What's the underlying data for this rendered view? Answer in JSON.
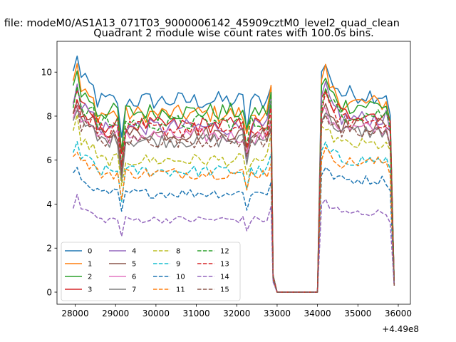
{
  "figure": {
    "suptitle": "n file: modeM0/AS1A13_071T03_9000006142_45909cztM0_level2_quad_clean"
  },
  "chart_data": {
    "type": "line",
    "title": "Quadrant 2 module wise count rates with 100.0s bins.",
    "xlabel": "",
    "ylabel": "",
    "x_offset_label": "+4.49e8",
    "xlim": [
      27550,
      36300
    ],
    "ylim": [
      -0.55,
      11.4
    ],
    "xticks": [
      28000,
      29000,
      30000,
      31000,
      32000,
      33000,
      34000,
      35000,
      36000
    ],
    "yticks": [
      0,
      2,
      4,
      6,
      8,
      10
    ],
    "grid": false,
    "legend": {
      "placement": "lower-left",
      "ncol": 4
    },
    "x_sampling": {
      "segment_1": [
        27950,
        32850,
        100
      ],
      "gap_points": [
        32900,
        33000,
        34000
      ],
      "segment_2": [
        34100,
        35900,
        100
      ],
      "note": "x values are offsets relative to 4.49e8 as printed on the axis"
    },
    "series": [
      {
        "name": "0",
        "color": "#1f77b4",
        "linestyle": "solid",
        "level_segment_1": 8.7,
        "level_segment_2": 9.0,
        "peak": 10.9,
        "low_end": 0.35
      },
      {
        "name": "1",
        "color": "#ff7f0e",
        "linestyle": "solid",
        "level_segment_1": 8.1,
        "level_segment_2": 8.6,
        "peak": 10.4,
        "low_end": 0.35
      },
      {
        "name": "2",
        "color": "#2ca02c",
        "linestyle": "solid",
        "level_segment_1": 8.2,
        "level_segment_2": 8.5,
        "peak": 10.1,
        "low_end": 0.35
      },
      {
        "name": "3",
        "color": "#d62728",
        "linestyle": "solid",
        "level_segment_1": 7.6,
        "level_segment_2": 8.1,
        "peak": 9.3,
        "low_end": 0.35
      },
      {
        "name": "4",
        "color": "#9467bd",
        "linestyle": "solid",
        "level_segment_1": 7.5,
        "level_segment_2": 7.9,
        "peak": 9.8,
        "low_end": 0.35
      },
      {
        "name": "5",
        "color": "#8c564b",
        "linestyle": "solid",
        "level_segment_1": 7.2,
        "level_segment_2": 7.6,
        "peak": 9.0,
        "low_end": 0.35
      },
      {
        "name": "6",
        "color": "#e377c2",
        "linestyle": "solid",
        "level_segment_1": 7.1,
        "level_segment_2": 7.4,
        "peak": 8.8,
        "low_end": 0.35
      },
      {
        "name": "7",
        "color": "#7f7f7f",
        "linestyle": "solid",
        "level_segment_1": 6.9,
        "level_segment_2": 7.3,
        "peak": 8.6,
        "low_end": 0.35
      },
      {
        "name": "8",
        "color": "#bcbd22",
        "linestyle": "dashed",
        "level_segment_1": 6.0,
        "level_segment_2": 6.7,
        "peak": 8.0,
        "low_end": 0.3
      },
      {
        "name": "9",
        "color": "#17becf",
        "linestyle": "dashed",
        "level_segment_1": 5.5,
        "level_segment_2": 6.0,
        "peak": 6.9,
        "low_end": 0.3
      },
      {
        "name": "10",
        "color": "#1f77b4",
        "linestyle": "dashed",
        "level_segment_1": 4.5,
        "level_segment_2": 5.1,
        "peak": 5.8,
        "low_end": 0.3
      },
      {
        "name": "11",
        "color": "#ff7f0e",
        "linestyle": "dashed",
        "level_segment_1": 5.4,
        "level_segment_2": 5.9,
        "peak": 6.6,
        "low_end": 0.3
      },
      {
        "name": "12",
        "color": "#2ca02c",
        "linestyle": "dashed",
        "level_segment_1": 7.7,
        "level_segment_2": 8.1,
        "peak": 9.4,
        "low_end": 0.3
      },
      {
        "name": "13",
        "color": "#d62728",
        "linestyle": "dashed",
        "level_segment_1": 7.4,
        "level_segment_2": 7.8,
        "peak": 9.1,
        "low_end": 0.3
      },
      {
        "name": "14",
        "color": "#9467bd",
        "linestyle": "dashed",
        "level_segment_1": 3.3,
        "level_segment_2": 3.6,
        "peak": 4.4,
        "low_end": 0.3
      },
      {
        "name": "15",
        "color": "#8c564b",
        "linestyle": "dashed",
        "level_segment_1": 6.9,
        "level_segment_2": 7.2,
        "peak": 8.6,
        "low_end": 0.3
      }
    ]
  }
}
